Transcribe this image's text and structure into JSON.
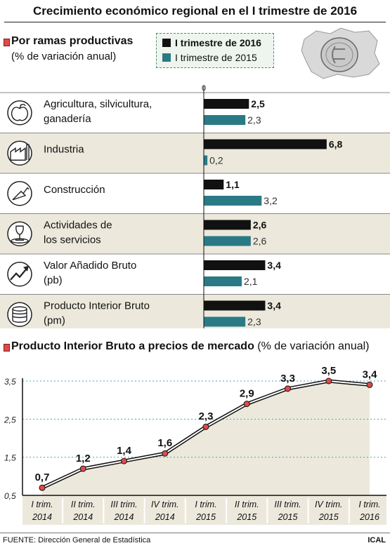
{
  "title": "Crecimiento económico regional en el I trimestre de 2016",
  "section1": {
    "title": "Por ramas productivas",
    "subtitle": "(% de variación anual)"
  },
  "section2": {
    "title": "Producto Interior Bruto a precios de mercado",
    "subtitle": "(% de variación anual)"
  },
  "colors": {
    "series1": "#111111",
    "series2": "#2a7a86",
    "bullet": "#e04a4a",
    "line": "#111111",
    "point": "#e04a4a",
    "area": "#ece9dc",
    "grid": "#4aa3b8"
  },
  "chart_data": [
    {
      "type": "bar",
      "orientation": "horizontal",
      "zero_label": "0",
      "categories": [
        {
          "lines": [
            "Agricultura, silvicultura,",
            "ganadería"
          ],
          "icon": "apple-icon"
        },
        {
          "lines": [
            "Industria"
          ],
          "icon": "factory-icon"
        },
        {
          "lines": [
            "Construcción"
          ],
          "icon": "trowel-icon"
        },
        {
          "lines": [
            "Actividades de",
            "los servicios"
          ],
          "icon": "wine-glass-icon"
        },
        {
          "lines": [
            "Valor Añadido Bruto",
            "(pb)"
          ],
          "icon": "trend-up-icon"
        },
        {
          "lines": [
            "Producto Interior Bruto",
            "(pm)"
          ],
          "icon": "coins-icon"
        }
      ],
      "series": [
        {
          "name": "I trimestre de 2016",
          "values": [
            2.5,
            6.8,
            1.1,
            2.6,
            3.4,
            3.4
          ],
          "labels": [
            "2,5",
            "6,8",
            "1,1",
            "2,6",
            "3,4",
            "3,4"
          ],
          "color": "#111111"
        },
        {
          "name": "I trimestre de 2015",
          "values": [
            2.3,
            0.2,
            3.2,
            2.6,
            2.1,
            2.3
          ],
          "labels": [
            "2,3",
            "0,2",
            "3,2",
            "2,6",
            "2,1",
            "2,3"
          ],
          "color": "#2a7a86"
        }
      ],
      "xlim": [
        0,
        7
      ]
    },
    {
      "type": "line",
      "x": [
        [
          "I trim.",
          "2014"
        ],
        [
          "II trim.",
          "2014"
        ],
        [
          "III trim.",
          "2014"
        ],
        [
          "IV trim.",
          "2014"
        ],
        [
          "I trim.",
          "2015"
        ],
        [
          "II trim.",
          "2015"
        ],
        [
          "III trim.",
          "2015"
        ],
        [
          "IV trim.",
          "2015"
        ],
        [
          "I trim.",
          "2016"
        ]
      ],
      "values": [
        0.7,
        1.2,
        1.4,
        1.6,
        2.3,
        2.9,
        3.3,
        3.5,
        3.4
      ],
      "labels": [
        "0,7",
        "1,2",
        "1,4",
        "1,6",
        "2,3",
        "2,9",
        "3,3",
        "3,5",
        "3,4"
      ],
      "ylim": [
        0.5,
        3.5
      ],
      "yticks": [
        0.5,
        1.5,
        2.5,
        3.5
      ],
      "ytick_labels": [
        "0,5",
        "1,5",
        "2,5",
        "3,5"
      ],
      "grid": true
    }
  ],
  "footer": {
    "source": "FUENTE: Dirección General de Estadística",
    "credit": "ICAL"
  }
}
